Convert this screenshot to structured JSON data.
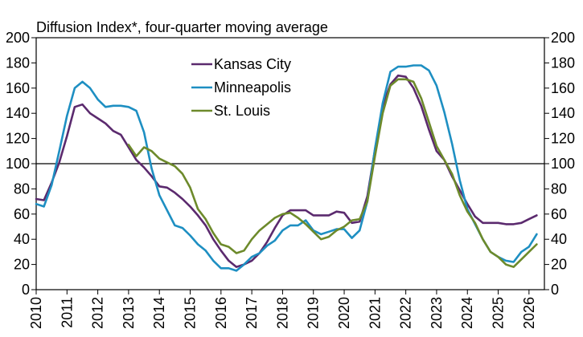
{
  "chart_data": {
    "type": "line",
    "title": "Diffusion Index*, four-quarter moving average",
    "xlabel": "",
    "ylabel": "",
    "xlim": [
      2010,
      2026.5
    ],
    "ylim": [
      0,
      200
    ],
    "y_ticks": [
      0,
      20,
      40,
      60,
      80,
      100,
      120,
      140,
      160,
      180,
      200
    ],
    "x_ticks": [
      2010,
      2011,
      2012,
      2013,
      2014,
      2015,
      2016,
      2017,
      2018,
      2019,
      2020,
      2021,
      2022,
      2023,
      2024,
      2025,
      2026
    ],
    "x_tick_labels": [
      "2010",
      "2011",
      "2012",
      "2013",
      "2014",
      "2015",
      "2016",
      "2017",
      "2018",
      "2019",
      "2020",
      "2021",
      "2022",
      "2023",
      "2024",
      "2025",
      "2026"
    ],
    "reference_line": 100,
    "legend_position": "top-center",
    "grid": false,
    "series": [
      {
        "name": "Kansas City",
        "color": "#5b2a6e",
        "x": [
          2010,
          2010.25,
          2010.5,
          2010.75,
          2011,
          2011.25,
          2011.5,
          2011.75,
          2012,
          2012.25,
          2012.5,
          2012.75,
          2013,
          2013.25,
          2013.5,
          2013.75,
          2014,
          2014.25,
          2014.5,
          2014.75,
          2015,
          2015.25,
          2015.5,
          2015.75,
          2016,
          2016.25,
          2016.5,
          2016.75,
          2017,
          2017.25,
          2017.5,
          2017.75,
          2018,
          2018.25,
          2018.5,
          2018.75,
          2019,
          2019.25,
          2019.5,
          2019.75,
          2020,
          2020.25,
          2020.5,
          2020.75,
          2021,
          2021.25,
          2021.5,
          2021.75,
          2022,
          2022.25,
          2022.5,
          2022.75,
          2023,
          2023.25,
          2023.5,
          2023.75,
          2024,
          2024.25,
          2024.5,
          2024.75,
          2025,
          2025.25,
          2025.5,
          2025.75,
          2026,
          2026.25
        ],
        "values": [
          72,
          71,
          85,
          101,
          122,
          145,
          147,
          140,
          136,
          132,
          126,
          123,
          113,
          103,
          97,
          90,
          82,
          81,
          77,
          72,
          66,
          59,
          51,
          40,
          31,
          23,
          18,
          20,
          23,
          29,
          38,
          49,
          59,
          63,
          63,
          63,
          59,
          59,
          59,
          62,
          61,
          53,
          54,
          74,
          111,
          146,
          163,
          170,
          169,
          160,
          146,
          127,
          110,
          103,
          90,
          79,
          68,
          58,
          53,
          53,
          53,
          52,
          52,
          53,
          56,
          59
        ]
      },
      {
        "name": "Minneapolis",
        "color": "#1e8fc2",
        "x": [
          2010,
          2010.25,
          2010.5,
          2010.75,
          2011,
          2011.25,
          2011.5,
          2011.75,
          2012,
          2012.25,
          2012.5,
          2012.75,
          2013,
          2013.25,
          2013.5,
          2013.75,
          2014,
          2014.25,
          2014.5,
          2014.75,
          2015,
          2015.25,
          2015.5,
          2015.75,
          2016,
          2016.25,
          2016.5,
          2016.75,
          2017,
          2017.25,
          2017.5,
          2017.75,
          2018,
          2018.25,
          2018.5,
          2018.75,
          2019,
          2019.25,
          2019.5,
          2019.75,
          2020,
          2020.25,
          2020.5,
          2020.75,
          2021,
          2021.25,
          2021.5,
          2021.75,
          2022,
          2022.25,
          2022.5,
          2022.75,
          2023,
          2023.25,
          2023.5,
          2023.75,
          2024,
          2024.25,
          2024.5,
          2024.75,
          2025,
          2025.25,
          2025.5,
          2025.75,
          2026,
          2026.25
        ],
        "values": [
          68,
          66,
          83,
          110,
          138,
          160,
          165,
          160,
          151,
          145,
          146,
          146,
          145,
          142,
          125,
          96,
          75,
          63,
          51,
          49,
          43,
          36,
          31,
          23,
          17,
          17,
          15,
          20,
          26,
          29,
          35,
          39,
          47,
          51,
          51,
          55,
          47,
          44,
          46,
          48,
          48,
          41,
          47,
          70,
          112,
          148,
          173,
          177,
          177,
          178,
          178,
          174,
          162,
          141,
          116,
          87,
          64,
          52,
          40,
          30,
          26,
          23,
          22,
          30,
          34,
          44
        ]
      },
      {
        "name": "St. Louis",
        "color": "#6d8a2b",
        "x": [
          2013,
          2013.25,
          2013.5,
          2013.75,
          2014,
          2014.25,
          2014.5,
          2014.75,
          2015,
          2015.25,
          2015.5,
          2015.75,
          2016,
          2016.25,
          2016.5,
          2016.75,
          2017,
          2017.25,
          2017.5,
          2017.75,
          2018,
          2018.25,
          2018.5,
          2018.75,
          2019,
          2019.25,
          2019.5,
          2019.75,
          2020,
          2020.25,
          2020.5,
          2020.75,
          2021,
          2021.25,
          2021.5,
          2021.75,
          2022,
          2022.25,
          2022.5,
          2022.75,
          2023,
          2023.25,
          2023.5,
          2023.75,
          2024,
          2024.25,
          2024.5,
          2024.75,
          2025,
          2025.25,
          2025.5,
          2025.75,
          2026,
          2026.25
        ],
        "values": [
          115,
          106,
          113,
          110,
          104,
          101,
          98,
          92,
          81,
          64,
          56,
          45,
          36,
          34,
          29,
          31,
          40,
          47,
          52,
          57,
          60,
          61,
          57,
          52,
          46,
          40,
          42,
          47,
          50,
          55,
          56,
          70,
          106,
          140,
          162,
          167,
          167,
          165,
          152,
          133,
          114,
          103,
          92,
          75,
          62,
          53,
          40,
          30,
          26,
          20,
          18,
          24,
          30,
          36
        ]
      }
    ]
  }
}
